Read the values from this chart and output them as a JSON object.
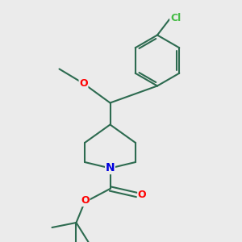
{
  "background_color": "#ebebeb",
  "bond_color": "#2d6b50",
  "bond_width": 1.5,
  "atom_colors": {
    "O": "#ff0000",
    "N": "#0000dd",
    "Cl": "#44bb44",
    "C": "#2d6b50"
  },
  "figsize": [
    3.0,
    3.0
  ],
  "dpi": 100,
  "xlim": [
    0,
    10
  ],
  "ylim": [
    0,
    10
  ]
}
